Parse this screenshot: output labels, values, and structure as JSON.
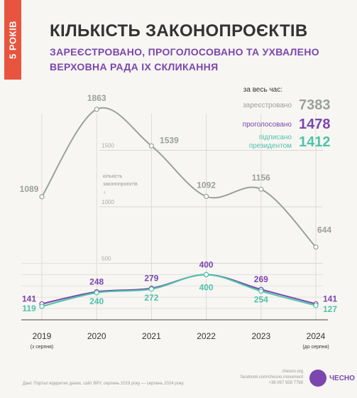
{
  "ribbon": "5 РОКІВ",
  "title": "КІЛЬКІСТЬ ЗАКОНОПРОЄКТІВ",
  "subtitle_line1": "ЗАРЕЄСТРОВАНО, ПРОГОЛОСОВАНО ТА УХВАЛЕНО",
  "subtitle_line2": "ВЕРХОВНА РАДА IX СКЛИКАННЯ",
  "totals": {
    "header": "за весь час:",
    "items": [
      {
        "label": "зареєстровано",
        "value": "7383",
        "color": "#9aa19c"
      },
      {
        "label": "проголосовано",
        "value": "1478",
        "color": "#7b46ad"
      },
      {
        "label": "підписано президентом",
        "value": "1412",
        "color": "#4fc3a9"
      }
    ]
  },
  "chart_data": {
    "type": "line",
    "x": [
      "2019",
      "2020",
      "2021",
      "2022",
      "2023",
      "2024"
    ],
    "x_sublabels": [
      "(з серпня)",
      "",
      "",
      "",
      "",
      "(до серпня)"
    ],
    "ylabel": "кількість законопроєктів ↓",
    "yticks": [
      500,
      1000,
      1500
    ],
    "series": [
      {
        "color": "#9aa19c",
        "values": [
          1089,
          1863,
          1539,
          1092,
          1156,
          644
        ]
      },
      {
        "color": "#7b46ad",
        "values": [
          141,
          248,
          279,
          400,
          269,
          141
        ]
      },
      {
        "color": "#4fc3a9",
        "values": [
          119,
          240,
          272,
          400,
          254,
          127
        ]
      }
    ]
  },
  "footer": {
    "source": "Дані: Портал відкритих даних, сайт ВРУ, серпень 2019 року — серпень 2024 року.",
    "site": "chesno.org",
    "facebook": "facebook.com/chesno.movement",
    "phone": "+38 067 658 7798",
    "logo_text": "ЧЕСНО"
  }
}
